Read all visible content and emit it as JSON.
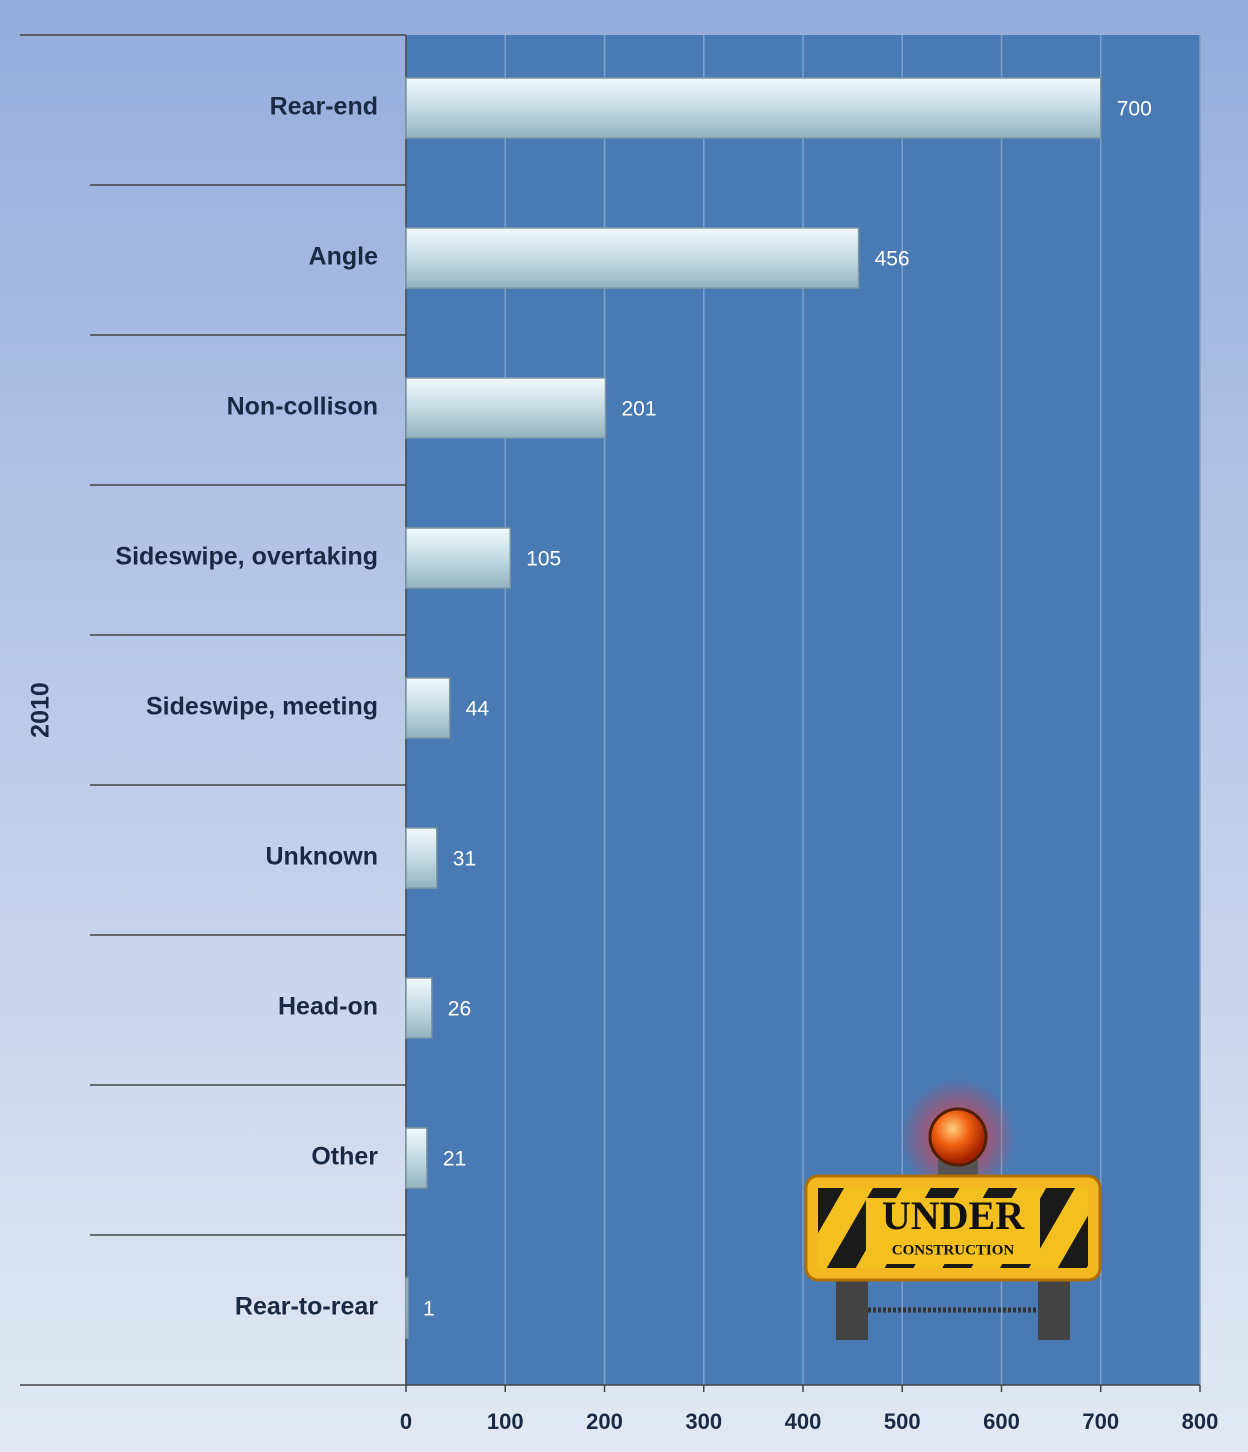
{
  "chart_data": {
    "type": "bar",
    "orientation": "horizontal",
    "group_label": "2010",
    "categories": [
      "Rear-end",
      "Angle",
      "Non-collison",
      "Sideswipe, overtaking",
      "Sideswipe, meeting",
      "Unknown",
      "Head-on",
      "Other",
      "Rear-to-rear"
    ],
    "values": [
      700,
      456,
      201,
      105,
      44,
      31,
      26,
      21,
      1
    ],
    "color": "#c4dbe4",
    "xlim": [
      0,
      800
    ],
    "xticks": [
      0,
      100,
      200,
      300,
      400,
      500,
      600,
      700,
      800
    ],
    "grid": true,
    "annotations": [
      "UNDER",
      "CONSTRUCTION"
    ]
  }
}
